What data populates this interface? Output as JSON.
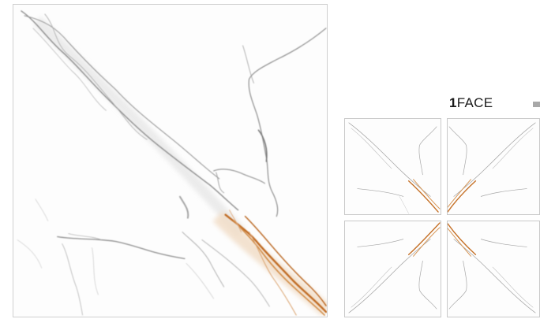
{
  "face_label": {
    "number": "1",
    "word": "FACE"
  },
  "colors": {
    "grey_vein": "#9a9a9a",
    "gold_vein": "#c8742a",
    "tile_border": "#cfcfcf"
  },
  "icons": {
    "marker": "grey-square-icon"
  }
}
